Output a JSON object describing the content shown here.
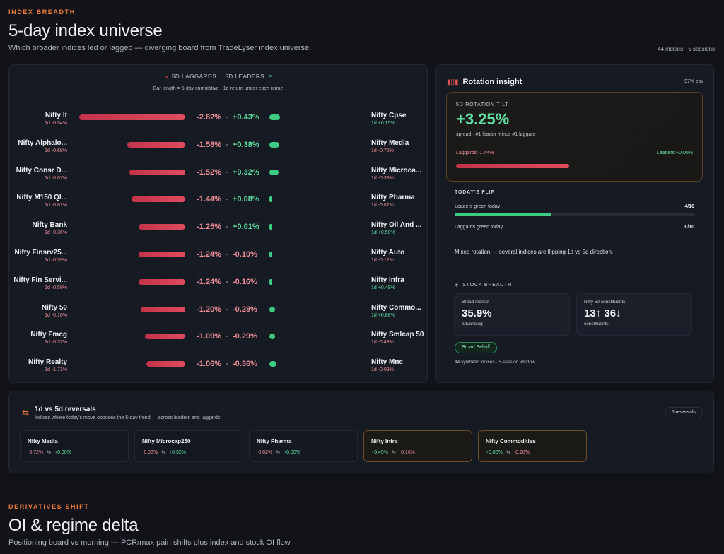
{
  "section1": {
    "eyebrow": "INDEX BREADTH",
    "title": "5-day index universe",
    "subtitle": "Which broader indices led or lagged — diverging board from TradeLyser index universe.",
    "meta": "44 indices · 5 sessions"
  },
  "board": {
    "legend_laggards": "5D LAGGARDS",
    "legend_leaders": "5D LEADERS",
    "legend_sub": "Bar length = 5-day cumulative · 1d return under each name",
    "rows": [
      {
        "lname": "Nifty It",
        "lsub": "1d -0.54%",
        "lval": "-2.82%",
        "lfrac": 1.0,
        "rval": "+0.43%",
        "rfrac": 0.7,
        "rname": "Nifty Cpse",
        "rsub": "1d +0.15%"
      },
      {
        "lname": "Nifty Alphalo...",
        "lsub": "1d -0.68%",
        "lval": "-1.58%",
        "lfrac": 0.55,
        "rval": "+0.38%",
        "rfrac": 0.62,
        "rname": "Nifty Media",
        "rsub": "1d -0.72%"
      },
      {
        "lname": "Nifty Consr D...",
        "lsub": "1d -0.87%",
        "lval": "-1.52%",
        "lfrac": 0.53,
        "rval": "+0.32%",
        "rfrac": 0.58,
        "rname": "Nifty Microca...",
        "rsub": "1d -0.33%"
      },
      {
        "lname": "Nifty M150 Ql...",
        "lsub": "1d -0.61%",
        "lval": "-1.44%",
        "lfrac": 0.51,
        "rval": "+0.08%",
        "rfrac": 0.12,
        "rname": "Nifty Pharma",
        "rsub": "1d -0.82%"
      },
      {
        "lname": "Nifty Bank",
        "lsub": "1d -0.36%",
        "lval": "-1.25%",
        "lfrac": 0.44,
        "rval": "+0.01%",
        "rfrac": 0.0,
        "rname": "Nifty Oil And ...",
        "rsub": "1d +0.50%"
      },
      {
        "lname": "Nifty Finsrv25...",
        "lsub": "1d -0.59%",
        "lval": "-1.24%",
        "lfrac": 0.44,
        "rval": "-0.10%",
        "rfrac": 0.12,
        "rname": "Nifty Auto",
        "rsub": "1d -0.12%"
      },
      {
        "lname": "Nifty Fin Servi...",
        "lsub": "1d -0.59%",
        "lval": "-1.24%",
        "lfrac": 0.44,
        "rval": "-0.16%",
        "rfrac": 0.2,
        "rname": "Nifty Infra",
        "rsub": "1d +0.49%"
      },
      {
        "lname": "Nifty 50",
        "lsub": "1d -0.16%",
        "lval": "-1.20%",
        "lfrac": 0.42,
        "rval": "-0.28%",
        "rfrac": 0.35,
        "rname": "Nifty Commo...",
        "rsub": "1d +0.88%"
      },
      {
        "lname": "Nifty Fmcg",
        "lsub": "1d -0.37%",
        "lval": "-1.09%",
        "lfrac": 0.38,
        "rval": "-0.29%",
        "rfrac": 0.36,
        "rname": "Nifty Smlcap 50",
        "rsub": "1d -0.43%"
      },
      {
        "lname": "Nifty Realty",
        "lsub": "1d -1.71%",
        "lval": "-1.06%",
        "lfrac": 0.37,
        "rval": "-0.36%",
        "rfrac": 0.46,
        "rname": "Nifty Mnc",
        "rsub": "1d -0.09%"
      }
    ]
  },
  "insight": {
    "title": "Rotation insight",
    "coverage": "97% cov",
    "tilt_label": "5D ROTATION TILT",
    "tilt_value": "+3.25%",
    "tilt_sub": "spread · #1 leader minus #1 laggard",
    "laggards": "Laggards -1.44%",
    "leaders": "Leaders +0.00%",
    "tilt_frac": 1.0,
    "flip_label": "TODAY'S FLIP",
    "flip_leaders_label": "Leaders green today",
    "flip_leaders_value": "4/10",
    "flip_leaders_frac": 0.4,
    "flip_laggards_label": "Laggards green today",
    "flip_laggards_value": "0/10",
    "flip_laggards_frac": 0.0,
    "flip_note": "Mixed rotation — several indices are flipping 1d vs 5d direction.",
    "breadth_title": "STOCK BREADTH",
    "broad_label": "Broad market",
    "broad_value": "35.9%",
    "broad_sub": "advancing",
    "n50_label": "Nifty 50 constituents",
    "n50_value": "13↑ 36↓",
    "n50_sub": "constituents",
    "badge": "Broad Selloff",
    "footer": "44 synthetic indices · 5-session window"
  },
  "reversals": {
    "title": "1d vs 5d reversals",
    "subtitle": "Indices where today's move opposes the 5-day trend — across leaders and laggards",
    "count": "5 reversals",
    "cards": [
      {
        "name": "Nifty Media",
        "d1": "-0.72%",
        "d5": "+0.38%",
        "hl": false
      },
      {
        "name": "Nifty Microcap250",
        "d1": "-0.33%",
        "d5": "+0.32%",
        "hl": false
      },
      {
        "name": "Nifty Pharma",
        "d1": "-0.82%",
        "d5": "+0.08%",
        "hl": false
      },
      {
        "name": "Nifty Infra",
        "d1": "+0.49%",
        "d5": "-0.16%",
        "hl": true
      },
      {
        "name": "Nifty Commodities",
        "d1": "+0.88%",
        "d5": "-0.28%",
        "hl": true
      }
    ]
  },
  "section2": {
    "eyebrow": "DERIVATIVES SHIFT",
    "title": "OI & regime delta",
    "subtitle": "Positioning board vs morning — PCR/max pain shifts plus index and stock OI flow."
  },
  "colors": {
    "accent": "#f07a3c",
    "negative": "#e04c5c",
    "positive": "#3ecb84"
  }
}
